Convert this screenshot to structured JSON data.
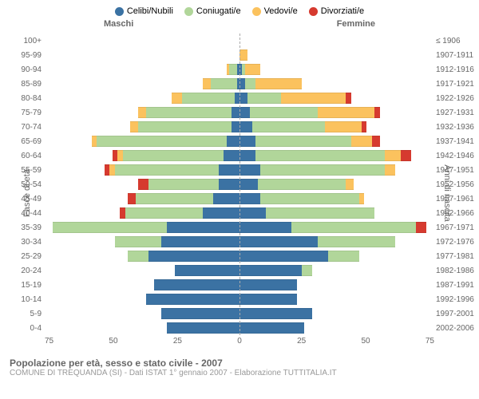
{
  "legend": [
    {
      "label": "Celibi/Nubili",
      "color": "#3b72a3"
    },
    {
      "label": "Coniugati/e",
      "color": "#b1d69a"
    },
    {
      "label": "Vedovi/e",
      "color": "#fbc25e"
    },
    {
      "label": "Divorziati/e",
      "color": "#d63a2f"
    }
  ],
  "headers": {
    "male": "Maschi",
    "female": "Femmine"
  },
  "axis_labels": {
    "left": "Fasce di età",
    "right": "Anni di nascita"
  },
  "x_max": 75,
  "x_ticks": [
    75,
    50,
    25,
    0,
    25,
    50,
    75
  ],
  "colors": {
    "single": "#3b72a3",
    "married": "#b1d69a",
    "widowed": "#fbc25e",
    "divorced": "#d63a2f"
  },
  "rows": [
    {
      "age": "100+",
      "birth": "≤ 1906",
      "m": {
        "s": 0,
        "ma": 0,
        "w": 0,
        "d": 0
      },
      "f": {
        "s": 0,
        "ma": 0,
        "w": 0,
        "d": 0
      }
    },
    {
      "age": "95-99",
      "birth": "1907-1911",
      "m": {
        "s": 0,
        "ma": 0,
        "w": 0,
        "d": 0
      },
      "f": {
        "s": 0,
        "ma": 0,
        "w": 3,
        "d": 0
      }
    },
    {
      "age": "90-94",
      "birth": "1912-1916",
      "m": {
        "s": 1,
        "ma": 3,
        "w": 1,
        "d": 0
      },
      "f": {
        "s": 1,
        "ma": 1,
        "w": 6,
        "d": 0
      }
    },
    {
      "age": "85-89",
      "birth": "1917-1921",
      "m": {
        "s": 1,
        "ma": 10,
        "w": 3,
        "d": 0
      },
      "f": {
        "s": 2,
        "ma": 4,
        "w": 18,
        "d": 0
      }
    },
    {
      "age": "80-84",
      "birth": "1922-1926",
      "m": {
        "s": 2,
        "ma": 20,
        "w": 4,
        "d": 0
      },
      "f": {
        "s": 3,
        "ma": 13,
        "w": 25,
        "d": 2
      }
    },
    {
      "age": "75-79",
      "birth": "1927-1931",
      "m": {
        "s": 3,
        "ma": 33,
        "w": 3,
        "d": 0
      },
      "f": {
        "s": 4,
        "ma": 26,
        "w": 22,
        "d": 2
      }
    },
    {
      "age": "70-74",
      "birth": "1932-1936",
      "m": {
        "s": 3,
        "ma": 36,
        "w": 3,
        "d": 0
      },
      "f": {
        "s": 5,
        "ma": 28,
        "w": 14,
        "d": 2
      }
    },
    {
      "age": "65-69",
      "birth": "1937-1941",
      "m": {
        "s": 5,
        "ma": 50,
        "w": 2,
        "d": 0
      },
      "f": {
        "s": 6,
        "ma": 37,
        "w": 8,
        "d": 3
      }
    },
    {
      "age": "60-64",
      "birth": "1942-1946",
      "m": {
        "s": 6,
        "ma": 39,
        "w": 2,
        "d": 2
      },
      "f": {
        "s": 6,
        "ma": 50,
        "w": 6,
        "d": 4
      }
    },
    {
      "age": "55-59",
      "birth": "1947-1951",
      "m": {
        "s": 8,
        "ma": 40,
        "w": 2,
        "d": 2
      },
      "f": {
        "s": 8,
        "ma": 48,
        "w": 4,
        "d": 0
      }
    },
    {
      "age": "50-54",
      "birth": "1952-1956",
      "m": {
        "s": 8,
        "ma": 27,
        "w": 0,
        "d": 4
      },
      "f": {
        "s": 7,
        "ma": 34,
        "w": 3,
        "d": 0
      }
    },
    {
      "age": "45-49",
      "birth": "1957-1961",
      "m": {
        "s": 10,
        "ma": 30,
        "w": 0,
        "d": 3
      },
      "f": {
        "s": 8,
        "ma": 38,
        "w": 2,
        "d": 0
      }
    },
    {
      "age": "40-44",
      "birth": "1962-1966",
      "m": {
        "s": 14,
        "ma": 30,
        "w": 0,
        "d": 2
      },
      "f": {
        "s": 10,
        "ma": 42,
        "w": 0,
        "d": 0
      }
    },
    {
      "age": "35-39",
      "birth": "1967-1971",
      "m": {
        "s": 28,
        "ma": 44,
        "w": 0,
        "d": 0
      },
      "f": {
        "s": 20,
        "ma": 48,
        "w": 0,
        "d": 4
      }
    },
    {
      "age": "30-34",
      "birth": "1972-1976",
      "m": {
        "s": 30,
        "ma": 18,
        "w": 0,
        "d": 0
      },
      "f": {
        "s": 30,
        "ma": 30,
        "w": 0,
        "d": 0
      }
    },
    {
      "age": "25-29",
      "birth": "1977-1981",
      "m": {
        "s": 35,
        "ma": 8,
        "w": 0,
        "d": 0
      },
      "f": {
        "s": 34,
        "ma": 12,
        "w": 0,
        "d": 0
      }
    },
    {
      "age": "20-24",
      "birth": "1982-1986",
      "m": {
        "s": 25,
        "ma": 0,
        "w": 0,
        "d": 0
      },
      "f": {
        "s": 24,
        "ma": 4,
        "w": 0,
        "d": 0
      }
    },
    {
      "age": "15-19",
      "birth": "1987-1991",
      "m": {
        "s": 33,
        "ma": 0,
        "w": 0,
        "d": 0
      },
      "f": {
        "s": 22,
        "ma": 0,
        "w": 0,
        "d": 0
      }
    },
    {
      "age": "10-14",
      "birth": "1992-1996",
      "m": {
        "s": 36,
        "ma": 0,
        "w": 0,
        "d": 0
      },
      "f": {
        "s": 22,
        "ma": 0,
        "w": 0,
        "d": 0
      }
    },
    {
      "age": "5-9",
      "birth": "1997-2001",
      "m": {
        "s": 30,
        "ma": 0,
        "w": 0,
        "d": 0
      },
      "f": {
        "s": 28,
        "ma": 0,
        "w": 0,
        "d": 0
      }
    },
    {
      "age": "0-4",
      "birth": "2002-2006",
      "m": {
        "s": 28,
        "ma": 0,
        "w": 0,
        "d": 0
      },
      "f": {
        "s": 25,
        "ma": 0,
        "w": 0,
        "d": 0
      }
    }
  ],
  "footer": {
    "title": "Popolazione per età, sesso e stato civile - 2007",
    "subtitle": "COMUNE DI TREQUANDA (SI) - Dati ISTAT 1° gennaio 2007 - Elaborazione TUTTITALIA.IT"
  }
}
